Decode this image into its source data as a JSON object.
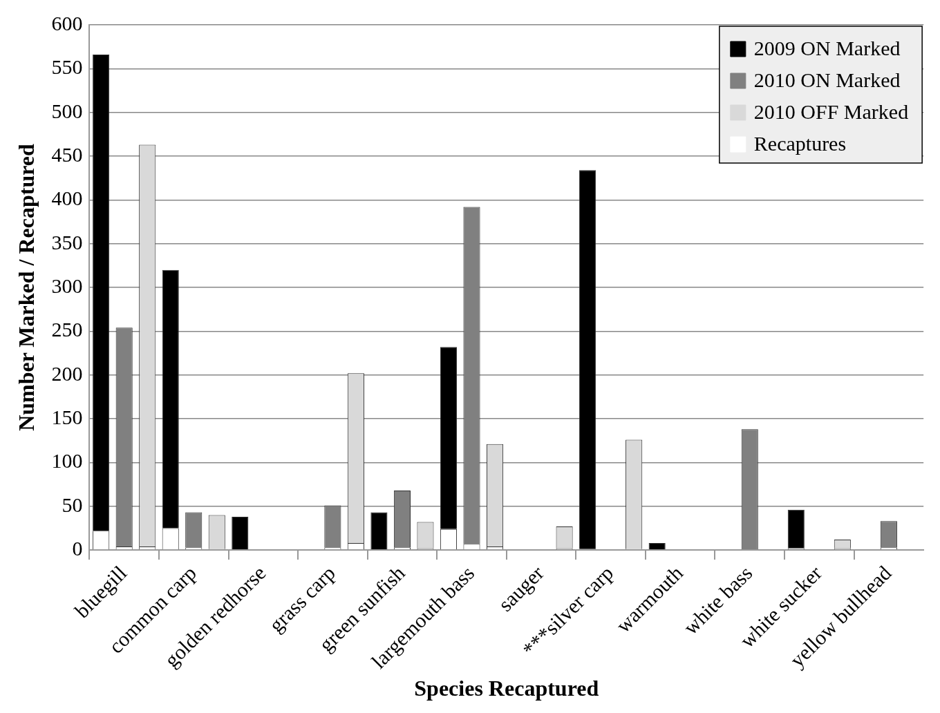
{
  "chart_data": {
    "type": "bar",
    "stacked": true,
    "xlabel": "Species Recaptured",
    "ylabel": "Number Marked / Recaptured",
    "categories": [
      null,
      "bluegill",
      null,
      null,
      "common carp",
      null,
      null,
      "golden redhorse",
      null,
      null,
      "grass carp",
      null,
      null,
      "green sunfish",
      null,
      null,
      "largemouth bass",
      null,
      null,
      "sauger",
      null,
      null,
      "***silver carp",
      null,
      null,
      "warmouth",
      null,
      null,
      "white bass",
      null,
      null,
      "white sucker",
      null,
      null,
      "yellow bullhead",
      null
    ],
    "series": [
      {
        "name": "Recaptures",
        "color": "#ffffff",
        "values": [
          22,
          4,
          4,
          25,
          3,
          1,
          0,
          null,
          null,
          null,
          3,
          8,
          0,
          3,
          2,
          24,
          7,
          4,
          null,
          null,
          2,
          1,
          null,
          1,
          0,
          null,
          null,
          null,
          0,
          null,
          2,
          null,
          2,
          null,
          3,
          null
        ]
      },
      {
        "name": "2009 ON Marked",
        "color": "#000000",
        "values": [
          544,
          null,
          null,
          295,
          null,
          null,
          38,
          null,
          null,
          null,
          null,
          null,
          43,
          null,
          null,
          208,
          null,
          null,
          null,
          null,
          null,
          433,
          null,
          null,
          8,
          null,
          null,
          null,
          null,
          null,
          44,
          null,
          null,
          null,
          null,
          null
        ]
      },
      {
        "name": "2010 ON Marked",
        "color": "#808080",
        "values": [
          null,
          250,
          null,
          null,
          40,
          null,
          null,
          null,
          null,
          null,
          48,
          null,
          null,
          65,
          null,
          null,
          385,
          null,
          null,
          null,
          null,
          null,
          null,
          null,
          null,
          null,
          null,
          null,
          138,
          null,
          null,
          null,
          null,
          null,
          30,
          null
        ]
      },
      {
        "name": "2010 OFF Marked",
        "color": "#d9d9d9",
        "values": [
          null,
          null,
          459,
          null,
          null,
          39,
          null,
          null,
          null,
          null,
          null,
          194,
          null,
          null,
          30,
          null,
          null,
          117,
          null,
          null,
          25,
          null,
          null,
          125,
          null,
          null,
          null,
          null,
          null,
          null,
          null,
          null,
          10,
          null,
          null,
          null
        ]
      }
    ],
    "ylim": [
      0,
      600
    ],
    "yticks": [
      0,
      50,
      100,
      150,
      200,
      250,
      300,
      350,
      400,
      450,
      500,
      550,
      600
    ],
    "grid": "y",
    "legend": "top right"
  }
}
